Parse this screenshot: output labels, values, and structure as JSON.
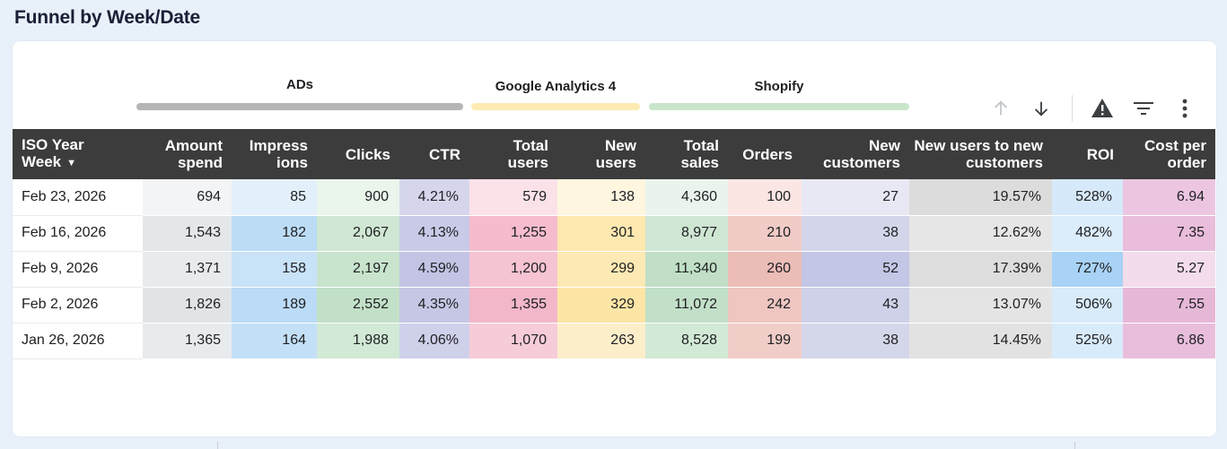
{
  "title": "Funnel by Week/Date",
  "groups": [
    {
      "label": "ADs",
      "color": "#b5b5b5"
    },
    {
      "label": "Google Analytics 4",
      "color": "#fdebb2"
    },
    {
      "label": "Shopify",
      "color": "#c9e6cc"
    }
  ],
  "toolbar": {
    "icons": [
      "arrow-up-icon",
      "arrow-down-icon",
      "warning-icon",
      "filter-icon",
      "more-vert-icon"
    ]
  },
  "table": {
    "headers": {
      "week_line1": "ISO Year",
      "week_line2": "Week",
      "amount_spend": "Amount spend",
      "impressions": "Impress ions",
      "clicks": "Clicks",
      "ctr": "CTR",
      "total_users": "Total users",
      "new_users": "New users",
      "total_sales": "Total sales",
      "orders": "Orders",
      "new_customers": "New customers",
      "new_users_to_new_customers": "New users to new customers",
      "roi": "ROI",
      "cost_per_order": "Cost per order"
    },
    "rows": [
      {
        "week": "Feb 23, 2026",
        "amount_spend": "694",
        "impressions": "85",
        "clicks": "900",
        "ctr": "4.21%",
        "total_users": "579",
        "new_users": "138",
        "total_sales": "4,360",
        "orders": "100",
        "new_customers": "27",
        "nu_to_nc": "19.57%",
        "roi": "528%",
        "cost_per_order": "6.94"
      },
      {
        "week": "Feb 16, 2026",
        "amount_spend": "1,543",
        "impressions": "182",
        "clicks": "2,067",
        "ctr": "4.13%",
        "total_users": "1,255",
        "new_users": "301",
        "total_sales": "8,977",
        "orders": "210",
        "new_customers": "38",
        "nu_to_nc": "12.62%",
        "roi": "482%",
        "cost_per_order": "7.35"
      },
      {
        "week": "Feb 9, 2026",
        "amount_spend": "1,371",
        "impressions": "158",
        "clicks": "2,197",
        "ctr": "4.59%",
        "total_users": "1,200",
        "new_users": "299",
        "total_sales": "11,340",
        "orders": "260",
        "new_customers": "52",
        "nu_to_nc": "17.39%",
        "roi": "727%",
        "cost_per_order": "5.27"
      },
      {
        "week": "Feb 2, 2026",
        "amount_spend": "1,826",
        "impressions": "189",
        "clicks": "2,552",
        "ctr": "4.35%",
        "total_users": "1,355",
        "new_users": "329",
        "total_sales": "11,072",
        "orders": "242",
        "new_customers": "43",
        "nu_to_nc": "13.07%",
        "roi": "506%",
        "cost_per_order": "7.55"
      },
      {
        "week": "Jan 26, 2026",
        "amount_spend": "1,365",
        "impressions": "164",
        "clicks": "1,988",
        "ctr": "4.06%",
        "total_users": "1,070",
        "new_users": "263",
        "total_sales": "8,528",
        "orders": "199",
        "new_customers": "38",
        "nu_to_nc": "14.45%",
        "roi": "525%",
        "cost_per_order": "6.86"
      }
    ],
    "cell_colors": [
      [
        "#f3f4f5",
        "#e3f0fb",
        "#eaf5ec",
        "#d5d6ec",
        "#fbe2e9",
        "#fff6e0",
        "#eaf4ec",
        "#fbe6e4",
        "#e7e8f3",
        "#dcdcdc",
        "#d6e9fa",
        "#ecc6e1"
      ],
      [
        "#e4e7ea",
        "#bcdcf6",
        "#cfe7d3",
        "#c9cae7",
        "#f5bccd",
        "#fde8b0",
        "#cfe6d3",
        "#f1cbc6",
        "#d3d5ea",
        "#e6e6e6",
        "#dbecfb",
        "#e9bddb"
      ],
      [
        "#e8ebed",
        "#c8e2f8",
        "#c8e4cd",
        "#c3c4e4",
        "#f6c3d2",
        "#fde9b3",
        "#c0dfc6",
        "#ecbdb7",
        "#c3c6e4",
        "#dddddd",
        "#a8d2f6",
        "#f3dcec"
      ],
      [
        "#e1e4e7",
        "#bbdbf6",
        "#c2e0c7",
        "#c6c7e5",
        "#f2b7c9",
        "#fde5a6",
        "#c2e0c8",
        "#efc6c1",
        "#ced1e8",
        "#e4e4e4",
        "#d8ebfb",
        "#e6b8d8"
      ],
      [
        "#e8ebee",
        "#c3e0f7",
        "#d2e9d6",
        "#cfd0ea",
        "#f7ccd9",
        "#fdeeca",
        "#d2e9d6",
        "#f1cdc8",
        "#d4d6ea",
        "#e2e2e2",
        "#d8ebfb",
        "#e8bedc"
      ]
    ]
  }
}
